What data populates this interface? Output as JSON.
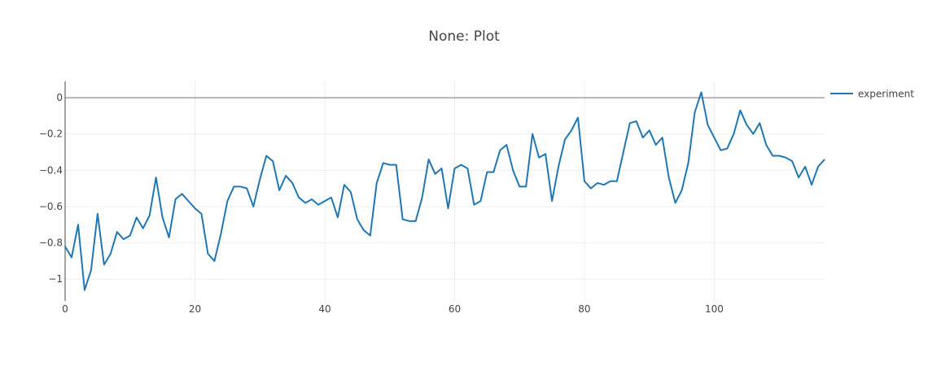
{
  "chart_data": {
    "type": "line",
    "title": "None: Plot",
    "xlabel": "",
    "ylabel": "",
    "xlim": [
      0,
      117
    ],
    "ylim": [
      -1.12,
      0.09
    ],
    "x_ticks": [
      0,
      20,
      40,
      60,
      80,
      100
    ],
    "y_ticks": [
      0,
      -0.2,
      -0.4,
      -0.6,
      -0.8,
      -1
    ],
    "y_tick_labels": [
      "0",
      "−0.2",
      "−0.4",
      "−0.6",
      "−0.8",
      "−1"
    ],
    "grid": true,
    "zero_line": true,
    "legend_position": "top-right",
    "series": [
      {
        "name": "experiment",
        "color": "#1f77b4",
        "values": [
          -0.82,
          -0.88,
          -0.7,
          -1.06,
          -0.95,
          -0.64,
          -0.92,
          -0.86,
          -0.74,
          -0.78,
          -0.76,
          -0.66,
          -0.72,
          -0.65,
          -0.44,
          -0.66,
          -0.77,
          -0.56,
          -0.53,
          -0.57,
          -0.61,
          -0.64,
          -0.86,
          -0.9,
          -0.75,
          -0.57,
          -0.49,
          -0.49,
          -0.5,
          -0.6,
          -0.45,
          -0.32,
          -0.35,
          -0.51,
          -0.43,
          -0.47,
          -0.55,
          -0.58,
          -0.56,
          -0.59,
          -0.57,
          -0.55,
          -0.66,
          -0.48,
          -0.52,
          -0.67,
          -0.73,
          -0.76,
          -0.47,
          -0.36,
          -0.37,
          -0.37,
          -0.67,
          -0.68,
          -0.68,
          -0.55,
          -0.34,
          -0.42,
          -0.39,
          -0.61,
          -0.39,
          -0.37,
          -0.39,
          -0.59,
          -0.57,
          -0.41,
          -0.41,
          -0.29,
          -0.26,
          -0.4,
          -0.49,
          -0.49,
          -0.2,
          -0.33,
          -0.31,
          -0.57,
          -0.38,
          -0.23,
          -0.18,
          -0.11,
          -0.46,
          -0.5,
          -0.47,
          -0.48,
          -0.46,
          -0.46,
          -0.3,
          -0.14,
          -0.13,
          -0.22,
          -0.18,
          -0.26,
          -0.22,
          -0.44,
          -0.58,
          -0.51,
          -0.36,
          -0.08,
          0.03,
          -0.15,
          -0.22,
          -0.29,
          -0.28,
          -0.2,
          -0.07,
          -0.15,
          -0.2,
          -0.14,
          -0.26,
          -0.32,
          -0.32,
          -0.33,
          -0.35,
          -0.44,
          -0.38,
          -0.48,
          -0.38,
          -0.34
        ]
      }
    ]
  }
}
